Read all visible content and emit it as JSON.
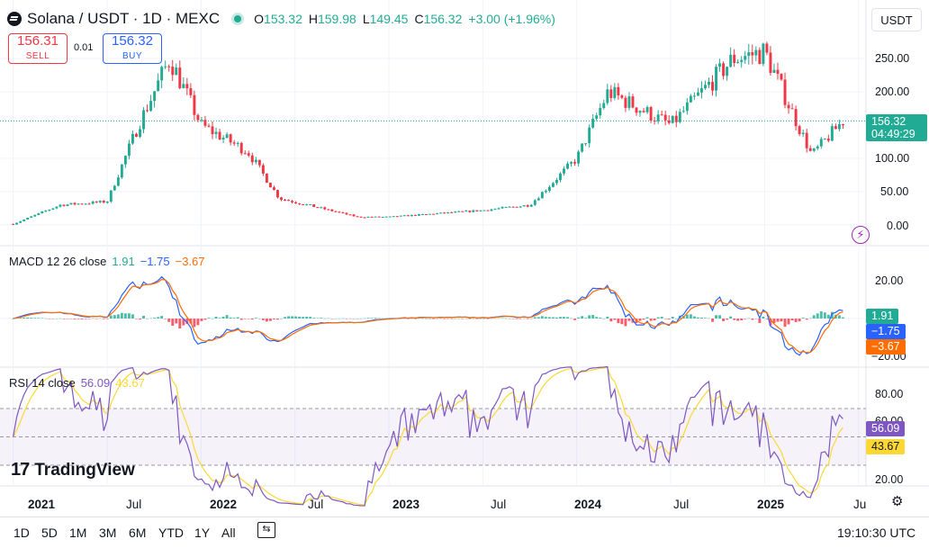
{
  "header": {
    "title": "Solana / USDT · 1D · MEXC",
    "ohlc": [
      {
        "k": "O",
        "v": "153.32"
      },
      {
        "k": "H",
        "v": "159.98"
      },
      {
        "k": "L",
        "v": "149.45"
      },
      {
        "k": "C",
        "v": "156.32"
      },
      {
        "k": "",
        "v": "+3.00 (+1.96%)"
      }
    ]
  },
  "trade": {
    "sell_price": "156.31",
    "sell_label": "SELL",
    "spread": "0.01",
    "buy_price": "156.32",
    "buy_label": "BUY"
  },
  "currency": "USDT",
  "price_axis": {
    "ticks": [
      "250.00",
      "200.00",
      "100.00",
      "50.00",
      "0.00"
    ],
    "last_price": "156.32",
    "countdown": "04:49:29"
  },
  "macd": {
    "legend": {
      "name": "MACD 12 26 close",
      "hist": "1.91",
      "macd": "−1.75",
      "signal": "−3.67"
    },
    "ticks": [
      "20.00",
      "−20.00"
    ],
    "labels": {
      "hist": "1.91",
      "macd": "−1.75",
      "signal": "−3.67"
    }
  },
  "rsi": {
    "legend": {
      "name": "RSI 14 close",
      "rsi": "56.09",
      "ma": "43.67"
    },
    "ticks": [
      "80.00",
      "60.00",
      "20.00"
    ],
    "labels": {
      "rsi": "56.09",
      "ma": "43.67"
    }
  },
  "time_axis": {
    "labels": [
      {
        "t": "2021",
        "major": true
      },
      {
        "t": "Jul",
        "major": false
      },
      {
        "t": "2022",
        "major": true
      },
      {
        "t": "Jul",
        "major": false
      },
      {
        "t": "2023",
        "major": true
      },
      {
        "t": "Jul",
        "major": false
      },
      {
        "t": "2024",
        "major": true
      },
      {
        "t": "Jul",
        "major": false
      },
      {
        "t": "2025",
        "major": true
      },
      {
        "t": "Ju",
        "major": false
      }
    ]
  },
  "ranges": [
    "1D",
    "5D",
    "1M",
    "3M",
    "6M",
    "YTD",
    "1Y",
    "All"
  ],
  "clock": "19:10:30 UTC",
  "brand": "TradingView",
  "colors": {
    "up": "#22ab94",
    "down": "#f23645",
    "macd": "#2962ff",
    "signal": "#ff6d00",
    "rsi": "#7e57c2",
    "rsi_ma": "#fdd835",
    "accent": "#2962ff"
  },
  "chart_data": {
    "type": "line",
    "title": "Solana / USDT · 1D · MEXC",
    "x": [
      "2021-01",
      "2021-04",
      "2021-07",
      "2021-09",
      "2021-11",
      "2022-01",
      "2022-04",
      "2022-06",
      "2022-11",
      "2023-01",
      "2023-07",
      "2023-10",
      "2024-01",
      "2024-03",
      "2024-07",
      "2024-11",
      "2025-01",
      "2025-04",
      "2025-06"
    ],
    "series": [
      {
        "name": "",
        "values": [
          1.5,
          30,
          35,
          150,
          250,
          150,
          110,
          40,
          12,
          12,
          22,
          30,
          100,
          200,
          150,
          250,
          260,
          105,
          156.32
        ]
      }
    ],
    "ylim": [
      0,
      270
    ],
    "grid": true
  }
}
